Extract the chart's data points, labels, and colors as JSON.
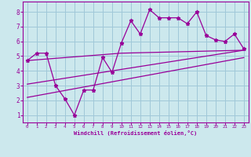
{
  "bg_color": "#cce8ed",
  "grid_color": "#a0c8d8",
  "line_color": "#990099",
  "xlabel": "Windchill (Refroidissement éolien,°C)",
  "xlabel_color": "#990099",
  "xticks": [
    0,
    1,
    2,
    3,
    4,
    5,
    6,
    7,
    8,
    9,
    10,
    11,
    12,
    13,
    14,
    15,
    16,
    17,
    18,
    19,
    20,
    21,
    22,
    23
  ],
  "yticks": [
    1,
    2,
    3,
    4,
    5,
    6,
    7,
    8
  ],
  "xlim": [
    -0.5,
    23.5
  ],
  "ylim": [
    0.5,
    8.7
  ],
  "line1_x": [
    0,
    1,
    2,
    3,
    4,
    5,
    6,
    7,
    8,
    9,
    10,
    11,
    12,
    13,
    14,
    15,
    16,
    17,
    18,
    19,
    20,
    21,
    22,
    23
  ],
  "line1_y": [
    4.7,
    5.2,
    5.2,
    3.0,
    2.1,
    1.0,
    2.7,
    2.7,
    4.9,
    3.9,
    5.9,
    7.4,
    6.5,
    8.15,
    7.6,
    7.6,
    7.6,
    7.2,
    8.0,
    6.4,
    6.1,
    6.0,
    6.5,
    5.5
  ],
  "line2_x": [
    0,
    23
  ],
  "line2_y": [
    3.1,
    5.4
  ],
  "line3_x": [
    0,
    23
  ],
  "line3_y": [
    2.2,
    4.9
  ],
  "line4_x": [
    0,
    10,
    23
  ],
  "line4_y": [
    4.7,
    5.2,
    5.4
  ]
}
